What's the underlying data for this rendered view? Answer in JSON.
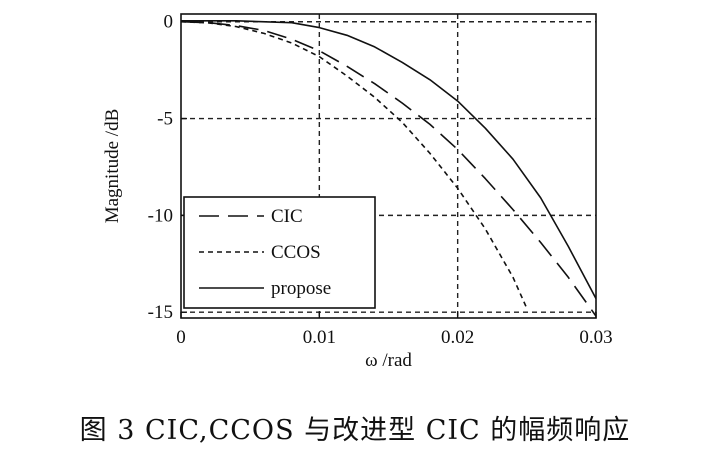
{
  "caption": "图 3   CIC,CCOS 与改进型 CIC 的幅频响应",
  "chart_data": {
    "type": "line",
    "title": "",
    "xlabel": "ω  /rad",
    "ylabel": "Magnitude /dB",
    "xlim": [
      0,
      0.03
    ],
    "ylim": [
      -15.3,
      0.4
    ],
    "xticks": [
      0,
      0.01,
      0.02,
      0.03
    ],
    "xtick_labels": [
      "0",
      "0.01",
      "0.02",
      "0.03"
    ],
    "yticks": [
      0,
      -5,
      -10,
      -15
    ],
    "ytick_labels": [
      "0",
      "-5",
      "-10",
      "-15"
    ],
    "grid": true,
    "legend_position": "bottom-left",
    "series": [
      {
        "name": "CIC",
        "style": "long-dash",
        "x": [
          0,
          0.002,
          0.004,
          0.006,
          0.008,
          0.01,
          0.012,
          0.014,
          0.016,
          0.018,
          0.02,
          0.022,
          0.024,
          0.026,
          0.028,
          0.03
        ],
        "y": [
          0,
          -0.05,
          -0.2,
          -0.45,
          -0.9,
          -1.5,
          -2.3,
          -3.2,
          -4.2,
          -5.3,
          -6.6,
          -8.1,
          -9.7,
          -11.4,
          -13.2,
          -15.2
        ]
      },
      {
        "name": "CCOS",
        "style": "short-dash",
        "x": [
          0,
          0.002,
          0.004,
          0.006,
          0.008,
          0.01,
          0.012,
          0.014,
          0.016,
          0.018,
          0.02,
          0.022,
          0.024,
          0.025
        ],
        "y": [
          0,
          -0.06,
          -0.25,
          -0.6,
          -1.1,
          -1.8,
          -2.8,
          -3.9,
          -5.2,
          -6.8,
          -8.6,
          -10.7,
          -13.2,
          -14.8
        ]
      },
      {
        "name": "propose",
        "style": "solid",
        "x": [
          0,
          0.004,
          0.008,
          0.01,
          0.012,
          0.014,
          0.016,
          0.018,
          0.02,
          0.022,
          0.024,
          0.026,
          0.028,
          0.03
        ],
        "y": [
          0.05,
          0.05,
          -0.05,
          -0.3,
          -0.7,
          -1.3,
          -2.1,
          -3.0,
          -4.1,
          -5.5,
          -7.1,
          -9.1,
          -11.6,
          -14.3
        ]
      }
    ]
  }
}
